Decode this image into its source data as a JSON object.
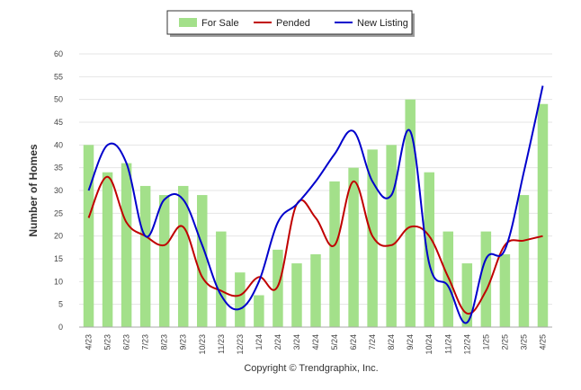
{
  "chart_data": {
    "type": "bar",
    "categories": [
      "4/23",
      "5/23",
      "6/23",
      "7/23",
      "8/23",
      "9/23",
      "10/23",
      "11/23",
      "12/23",
      "1/24",
      "2/24",
      "3/24",
      "4/24",
      "5/24",
      "6/24",
      "7/24",
      "8/24",
      "9/24",
      "10/24",
      "11/24",
      "12/24",
      "1/25",
      "2/25",
      "3/25",
      "4/25"
    ],
    "series": [
      {
        "name": "For Sale",
        "kind": "bar",
        "color": "#a3e08a",
        "values": [
          40,
          34,
          36,
          31,
          29,
          31,
          29,
          21,
          12,
          7,
          17,
          14,
          16,
          32,
          35,
          39,
          40,
          50,
          34,
          21,
          14,
          21,
          16,
          29,
          49
        ]
      },
      {
        "name": "Pended",
        "kind": "line",
        "color": "#c00000",
        "values": [
          24,
          33,
          23,
          20,
          18,
          22,
          11,
          8,
          7,
          11,
          9,
          27,
          24,
          18,
          32,
          20,
          18,
          22,
          20,
          11,
          3,
          8,
          18,
          19,
          20
        ]
      },
      {
        "name": "New Listing",
        "kind": "line",
        "color": "#0000cc",
        "values": [
          30,
          40,
          36,
          20,
          28,
          28,
          18,
          7,
          4,
          10,
          23,
          27,
          32,
          38,
          43,
          32,
          29,
          43,
          14,
          9,
          1,
          15,
          17,
          34,
          53
        ]
      }
    ],
    "xlabel": "",
    "ylabel": "Number of Homes",
    "ylim": [
      0,
      60
    ],
    "yticks": [
      0,
      5,
      10,
      15,
      20,
      25,
      30,
      35,
      40,
      45,
      50,
      55,
      60
    ],
    "grid": true,
    "legend_position": "top-center"
  },
  "legend": {
    "items": [
      {
        "label": "For Sale",
        "swatch": "bar",
        "color": "#a3e08a"
      },
      {
        "label": "Pended",
        "swatch": "line",
        "color": "#c00000"
      },
      {
        "label": "New Listing",
        "swatch": "line",
        "color": "#0000cc"
      }
    ]
  },
  "footer": {
    "copyright": "Copyright © Trendgraphix, Inc."
  }
}
